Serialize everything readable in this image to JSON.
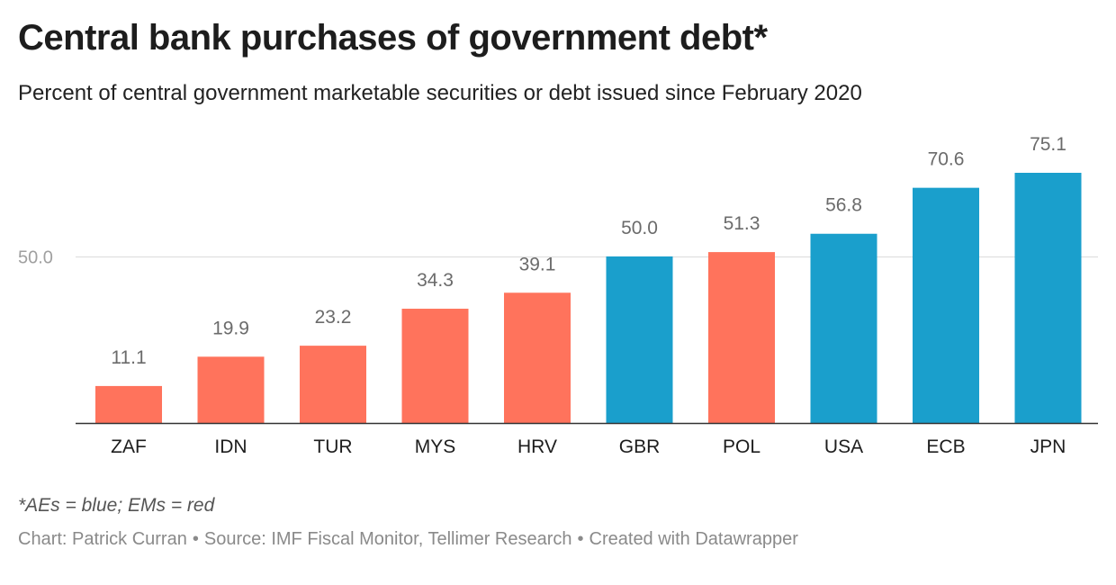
{
  "chart_data": {
    "type": "bar",
    "title": "Central bank purchases of government debt*",
    "subtitle": "Percent of central government marketable securities or debt issued since February 2020",
    "categories": [
      "ZAF",
      "IDN",
      "TUR",
      "MYS",
      "HRV",
      "GBR",
      "POL",
      "USA",
      "ECB",
      "JPN"
    ],
    "values": [
      11.1,
      19.9,
      23.2,
      34.3,
      39.1,
      50.0,
      51.3,
      56.8,
      70.6,
      75.1
    ],
    "value_labels": [
      "11.1",
      "19.9",
      "23.2",
      "34.3",
      "39.1",
      "50.0",
      "51.3",
      "56.8",
      "70.6",
      "75.1"
    ],
    "groups": [
      "EM",
      "EM",
      "EM",
      "EM",
      "EM",
      "AE",
      "EM",
      "AE",
      "AE",
      "AE"
    ],
    "colors": {
      "AE": "#1a9fcc",
      "EM": "#ff735c"
    },
    "y_ticks": [
      50
    ],
    "y_tick_labels": [
      "50.0"
    ],
    "ylim": [
      0,
      75.1
    ],
    "xlabel": "",
    "ylabel": "",
    "gridlines": true,
    "note": "*AEs = blue; EMs = red",
    "credit_chart": "Chart: Patrick Curran",
    "credit_source": "Source: IMF Fiscal Monitor, Tellimer Research",
    "credit_tool": "Created with Datawrapper",
    "credit_separator": "•"
  }
}
